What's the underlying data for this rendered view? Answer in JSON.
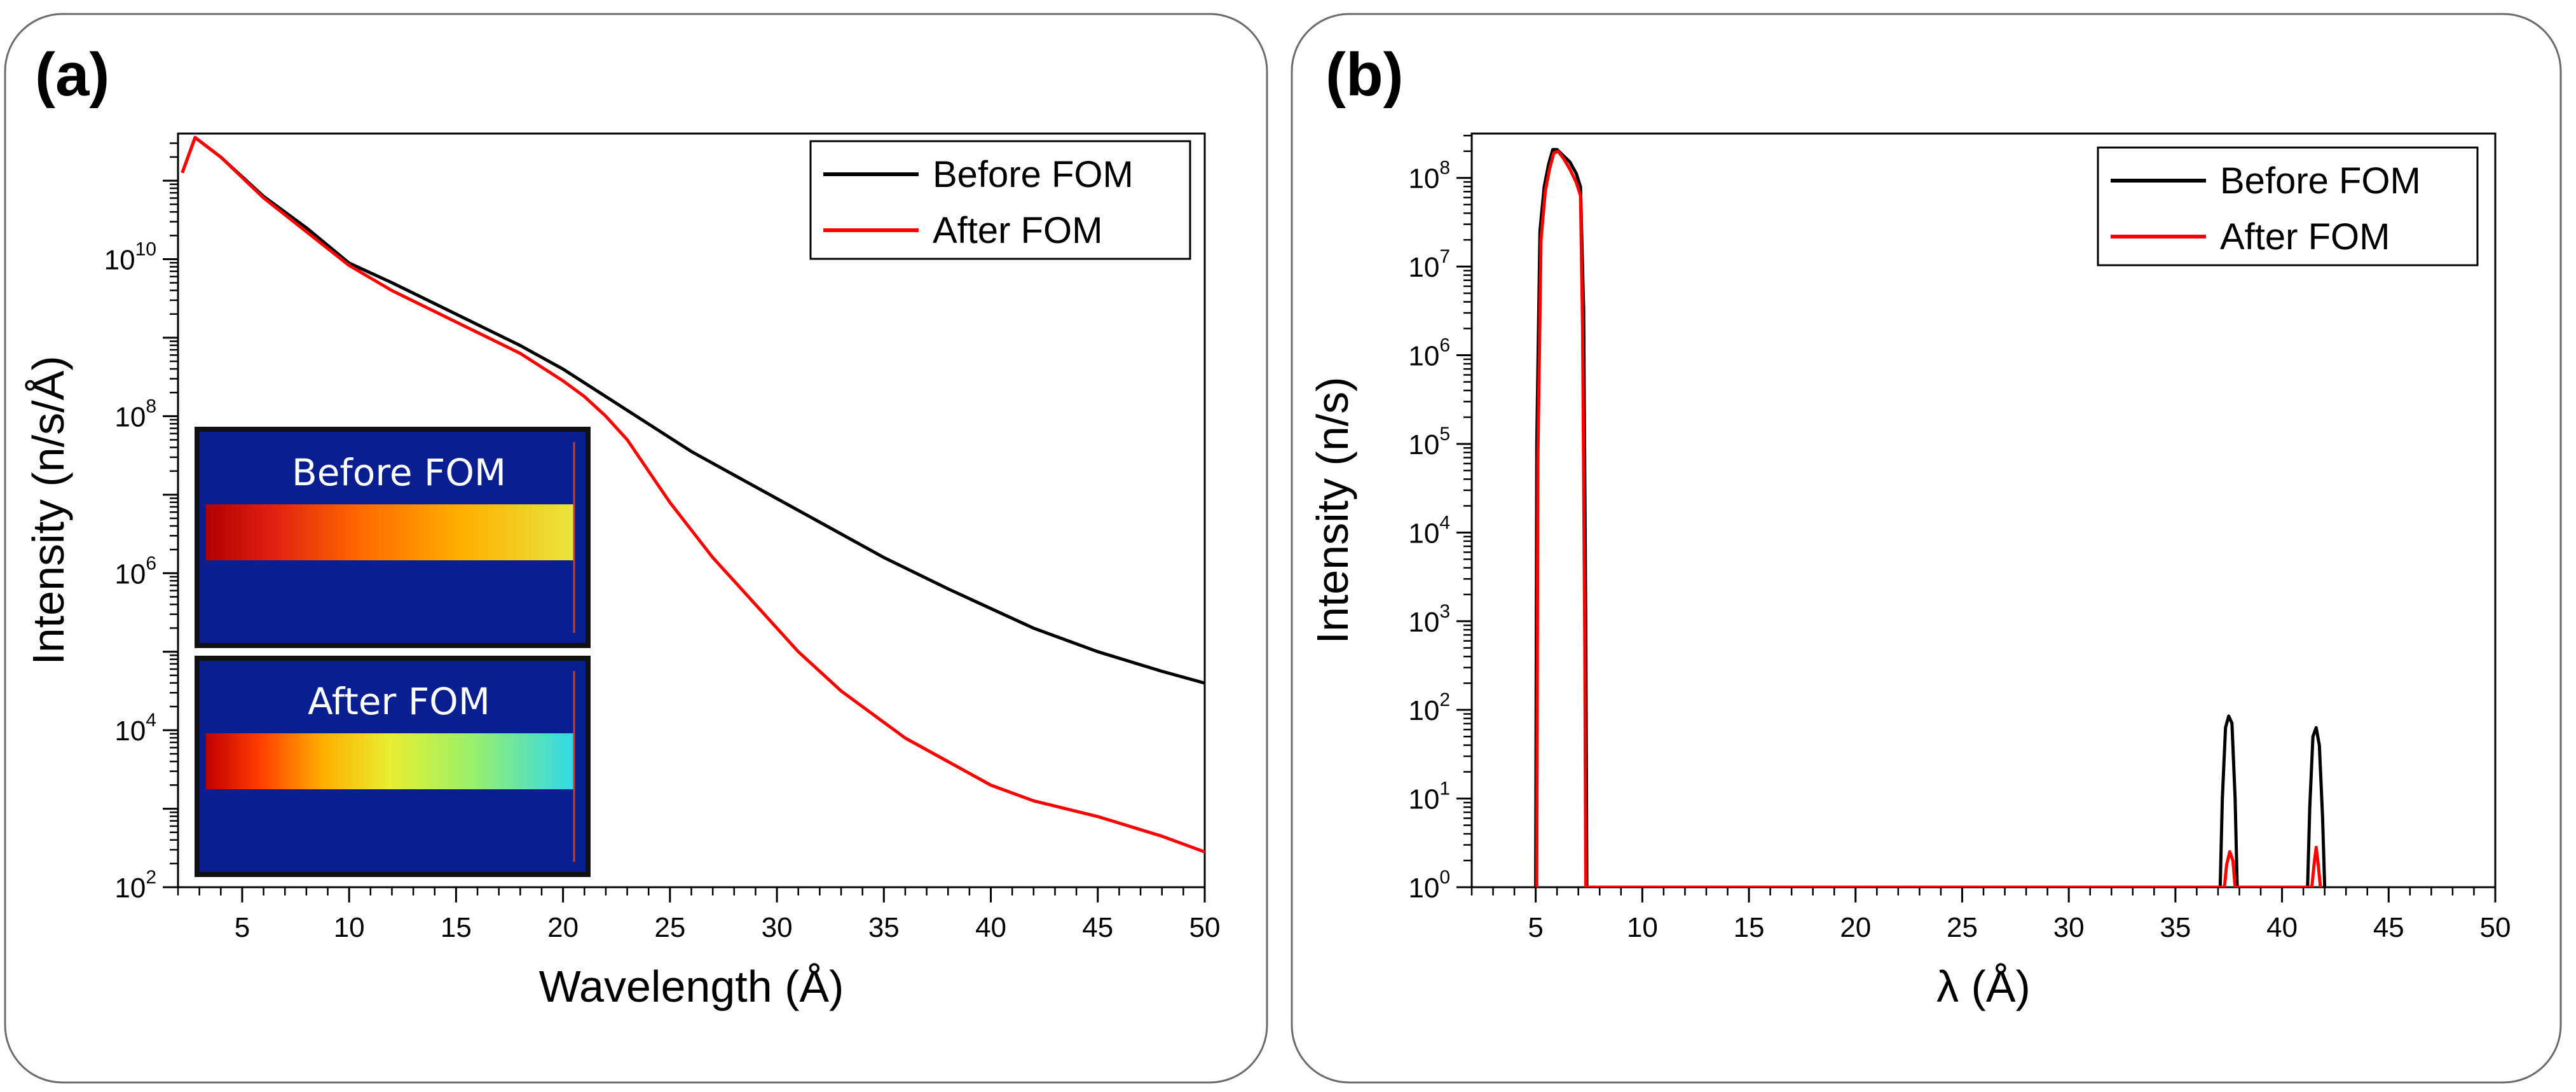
{
  "panels": {
    "a": {
      "label": "(a)"
    },
    "b": {
      "label": "(b)"
    }
  },
  "colors": {
    "before": "#000000",
    "after": "#ff0000",
    "inset_bg": "#0a1f8f"
  },
  "inset": {
    "top_label": "Before FOM",
    "bottom_label": "After FOM"
  },
  "chart_data": [
    {
      "type": "line",
      "panel": "a",
      "xlabel": "Wavelength (Å)",
      "ylabel": "Intensity (n/s/Å)",
      "xlim": [
        2,
        50
      ],
      "ylim_log10": [
        2,
        11.6
      ],
      "yscale": "log",
      "xticks": [
        5,
        10,
        15,
        20,
        25,
        30,
        35,
        40,
        45,
        50
      ],
      "yticks_exp": [
        2,
        4,
        6,
        8,
        10
      ],
      "legend": "top-right",
      "series": [
        {
          "name": "Before FOM",
          "color": "#000000",
          "x": [
            2.2,
            2.8,
            4,
            6,
            8,
            10,
            12,
            15,
            18,
            20,
            22,
            24,
            26,
            28,
            30,
            32,
            35,
            38,
            40,
            42,
            45,
            48,
            50
          ],
          "log10y": [
            11.1,
            11.55,
            11.3,
            10.8,
            10.4,
            9.95,
            9.7,
            9.3,
            8.9,
            8.6,
            8.25,
            7.9,
            7.55,
            7.25,
            6.95,
            6.65,
            6.2,
            5.8,
            5.55,
            5.3,
            5.0,
            4.75,
            4.6
          ]
        },
        {
          "name": "After FOM",
          "color": "#ff0000",
          "x": [
            2.2,
            2.8,
            4,
            6,
            8,
            10,
            12,
            15,
            18,
            20,
            21,
            22,
            23,
            24,
            25,
            26,
            27,
            28,
            29,
            30,
            31,
            32,
            33,
            34,
            35,
            36,
            38,
            40,
            42,
            45,
            48,
            50
          ],
          "log10y": [
            11.1,
            11.55,
            11.3,
            10.78,
            10.35,
            9.92,
            9.6,
            9.2,
            8.8,
            8.45,
            8.25,
            8.0,
            7.7,
            7.3,
            6.9,
            6.55,
            6.2,
            5.9,
            5.6,
            5.3,
            5.0,
            4.75,
            4.5,
            4.3,
            4.1,
            3.9,
            3.6,
            3.3,
            3.1,
            2.9,
            2.65,
            2.45
          ]
        }
      ]
    },
    {
      "type": "line",
      "panel": "b",
      "xlabel": "λ (Å)",
      "ylabel": "Intensity (n/s)",
      "xlim": [
        2,
        50
      ],
      "ylim_log10": [
        0,
        8.5
      ],
      "yscale": "log",
      "xticks": [
        5,
        10,
        15,
        20,
        25,
        30,
        35,
        40,
        45,
        50
      ],
      "yticks_exp": [
        0,
        1,
        2,
        3,
        4,
        5,
        6,
        7,
        8
      ],
      "legend": "top-right",
      "series": [
        {
          "name": "Before FOM",
          "color": "#000000",
          "x": [
            5.0,
            5.05,
            5.2,
            5.4,
            5.6,
            5.8,
            6.0,
            6.3,
            6.6,
            6.9,
            7.1,
            7.25,
            7.35,
            7.4,
            37.1,
            37.2,
            37.35,
            37.5,
            37.65,
            37.8,
            37.9,
            41.2,
            41.3,
            41.45,
            41.6,
            41.75,
            41.9,
            42.0
          ],
          "log10y": [
            0,
            5.0,
            7.4,
            7.9,
            8.15,
            8.32,
            8.32,
            8.25,
            8.18,
            8.05,
            7.9,
            6.5,
            3.0,
            0,
            0,
            1.0,
            1.8,
            1.93,
            1.85,
            1.0,
            0,
            0,
            0.9,
            1.7,
            1.8,
            1.6,
            0.8,
            0
          ]
        },
        {
          "name": "After FOM",
          "color": "#ff0000",
          "x": [
            5.05,
            5.1,
            5.25,
            5.45,
            5.65,
            5.85,
            6.05,
            6.3,
            6.6,
            6.9,
            7.1,
            7.2,
            7.3,
            7.35,
            37.3,
            37.4,
            37.55,
            37.7,
            37.8,
            41.4,
            41.5,
            41.6,
            41.7,
            41.8
          ],
          "log10y": [
            0,
            4.8,
            7.3,
            7.85,
            8.1,
            8.28,
            8.3,
            8.22,
            8.1,
            7.95,
            7.8,
            6.3,
            2.8,
            0,
            0,
            0.25,
            0.4,
            0.3,
            0,
            0,
            0.25,
            0.45,
            0.25,
            0
          ]
        }
      ]
    }
  ]
}
